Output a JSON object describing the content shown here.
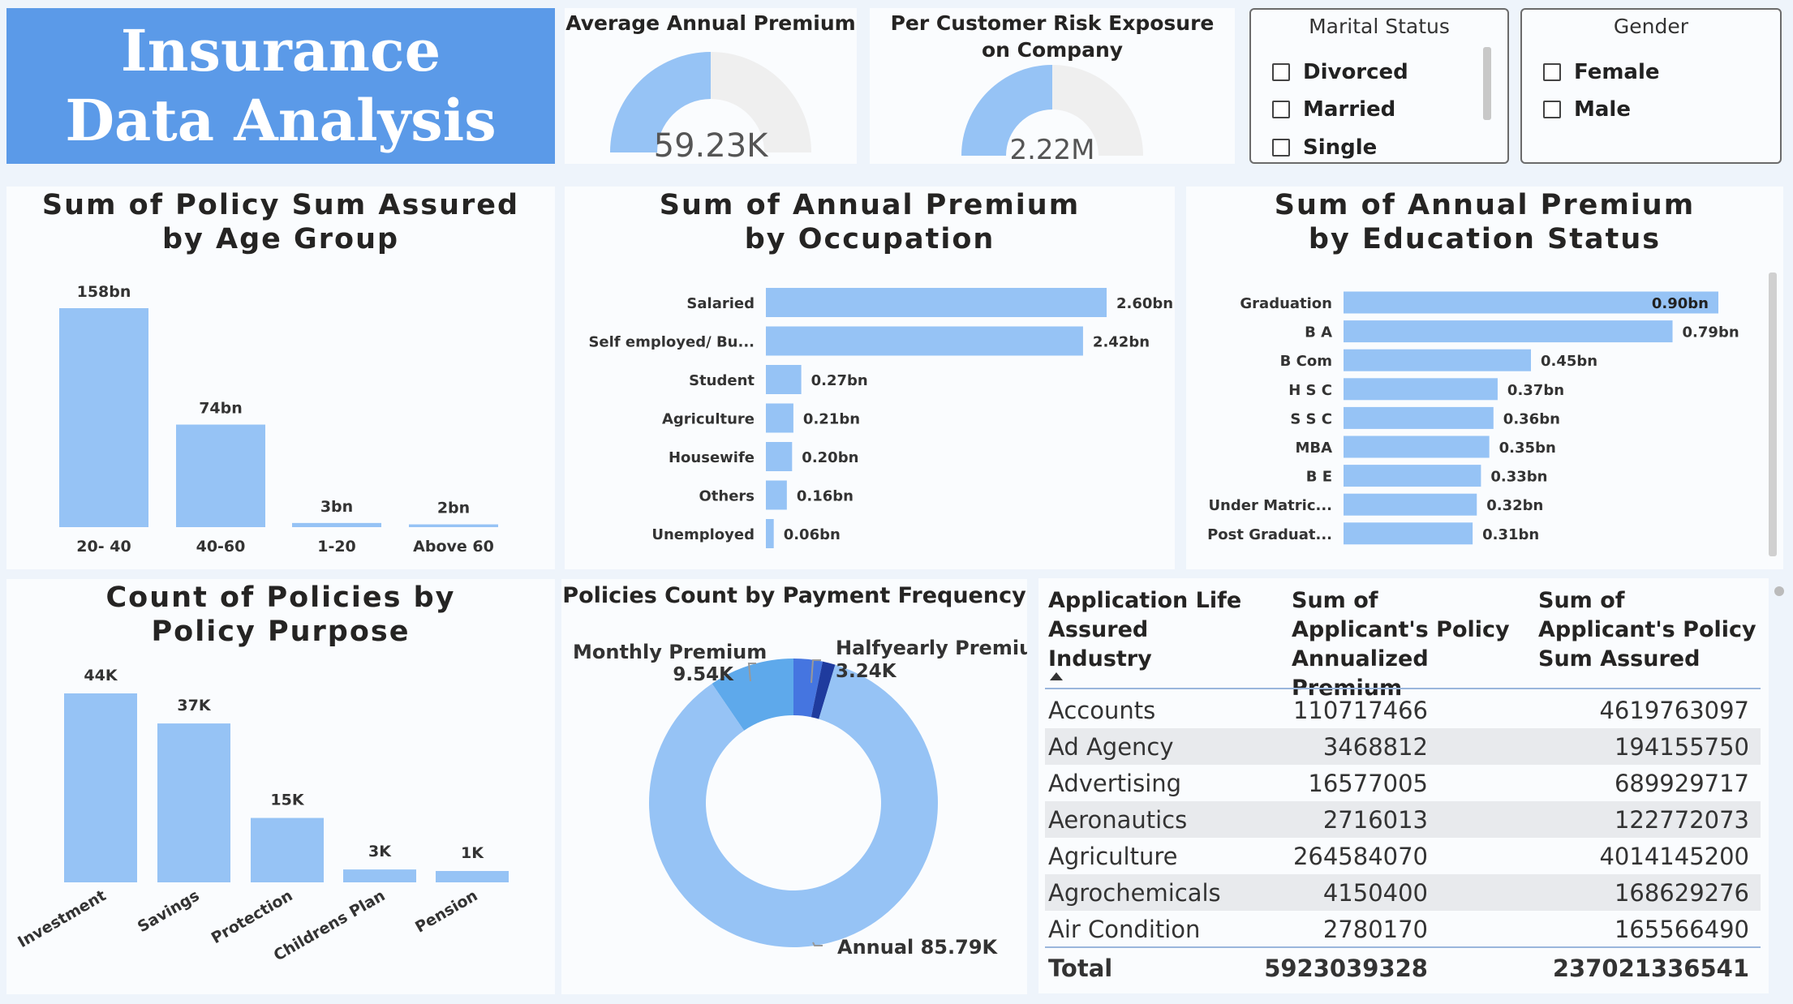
{
  "title": "Insurance Data Analysis",
  "gauges": [
    {
      "title": "Average Annual Premium",
      "value_label": "59.23K",
      "fraction": 0.5
    },
    {
      "title": "Per Customer Risk Exposure on Company",
      "value_label": "2.22M",
      "fraction": 0.5
    }
  ],
  "slicers": {
    "marital": {
      "title": "Marital Status",
      "options": [
        "Divorced",
        "Married",
        "Single"
      ]
    },
    "gender": {
      "title": "Gender",
      "options": [
        "Female",
        "Male"
      ]
    }
  },
  "colors": {
    "bar": "#96c3f5",
    "title_bg": "#5b9ae8",
    "gauge_track": "#efefef",
    "donut_monthly": "#5ea9eb",
    "donut_half": "#4575e0",
    "donut_other": "#1f3b9e"
  },
  "chart_data": [
    {
      "type": "bar",
      "title": "Sum of Policy Sum Assured by Age Group",
      "categories": [
        "20- 40",
        "40-60",
        "1-20",
        "Above 60"
      ],
      "values": [
        158,
        74,
        3,
        2
      ],
      "value_labels": [
        "158bn",
        "74bn",
        "3bn",
        "2bn"
      ],
      "unit": "bn"
    },
    {
      "type": "bar",
      "orientation": "horizontal",
      "title": "Sum of Annual Premium by Occupation",
      "categories": [
        "Salaried",
        "Self employed/ Bu...",
        "Student",
        "Agriculture",
        "Housewife",
        "Others",
        "Unemployed"
      ],
      "values": [
        2.6,
        2.42,
        0.27,
        0.21,
        0.2,
        0.16,
        0.06
      ],
      "value_labels": [
        "2.60bn",
        "2.42bn",
        "0.27bn",
        "0.21bn",
        "0.20bn",
        "0.16bn",
        "0.06bn"
      ],
      "unit": "bn"
    },
    {
      "type": "bar",
      "orientation": "horizontal",
      "title": "Sum of Annual Premium by Education Status",
      "categories": [
        "Graduation",
        "B A",
        "B Com",
        "H S C",
        "S S C",
        "MBA",
        "B E",
        "Under Matric...",
        "Post Graduat..."
      ],
      "values": [
        0.9,
        0.79,
        0.45,
        0.37,
        0.36,
        0.35,
        0.33,
        0.32,
        0.31
      ],
      "value_labels": [
        "0.90bn",
        "0.79bn",
        "0.45bn",
        "0.37bn",
        "0.36bn",
        "0.35bn",
        "0.33bn",
        "0.32bn",
        "0.31bn"
      ],
      "unit": "bn"
    },
    {
      "type": "bar",
      "title": "Count of Policies by Policy Purpose",
      "categories": [
        "Investment",
        "Savings",
        "Protection",
        "Childrens Plan",
        "Pension"
      ],
      "values": [
        44,
        37,
        15,
        3,
        1
      ],
      "value_labels": [
        "44K",
        "37K",
        "15K",
        "3K",
        "1K"
      ],
      "unit": "K"
    },
    {
      "type": "pie",
      "donut": true,
      "title": "Policies Count by Payment Frequency",
      "categories": [
        "Annual",
        "Monthly Premium",
        "Halfyearly Premium"
      ],
      "values": [
        85.79,
        9.54,
        3.24
      ],
      "value_labels": [
        "85.79K",
        "9.54K",
        "3.24K"
      ]
    },
    {
      "type": "table",
      "columns": [
        "Application Life Assured Industry",
        "Sum of Applicant's Policy Annualized Premium",
        "Sum of Applicant's Policy Sum Assured"
      ],
      "rows": [
        [
          "Accounts",
          "110717466",
          "4619763097"
        ],
        [
          "Ad Agency",
          "3468812",
          "194155750"
        ],
        [
          "Advertising",
          "16577005",
          "689929717"
        ],
        [
          "Aeronautics",
          "2716013",
          "122772073"
        ],
        [
          "Agriculture",
          "264584070",
          "4014145200"
        ],
        [
          "Agrochemicals",
          "4150400",
          "168629276"
        ],
        [
          "Air Condition",
          "2780170",
          "165566490"
        ]
      ],
      "total": [
        "Total",
        "5923039328",
        "237021336541"
      ]
    }
  ]
}
